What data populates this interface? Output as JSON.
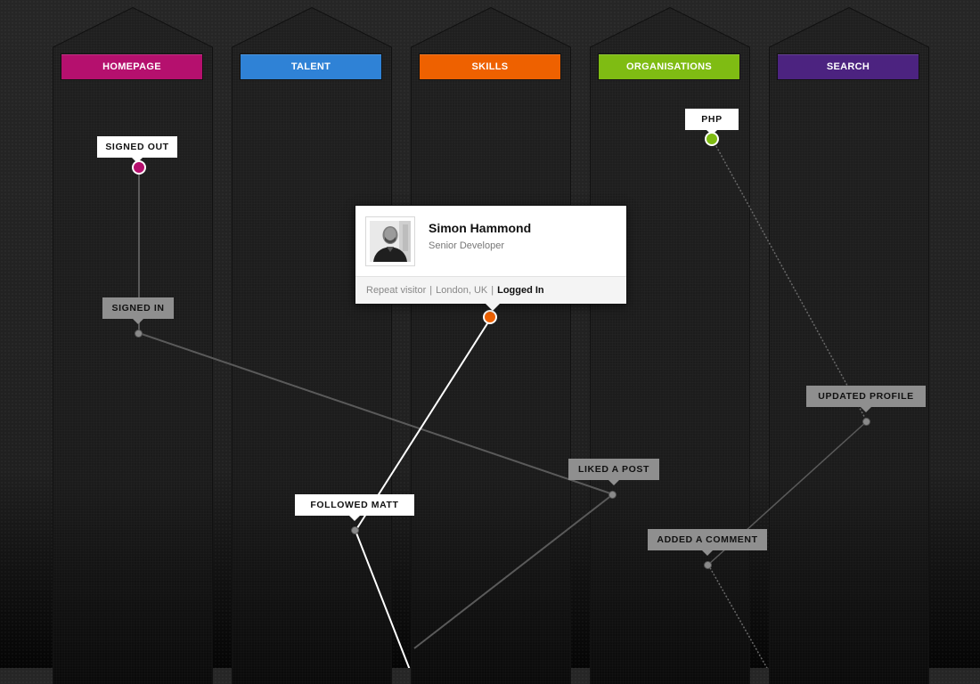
{
  "columns": [
    {
      "id": "homepage",
      "label": "HOMEPAGE",
      "color": "#b5106e"
    },
    {
      "id": "talent",
      "label": "TALENT",
      "color": "#2f82d6"
    },
    {
      "id": "skills",
      "label": "SKILLS",
      "color": "#ee6100"
    },
    {
      "id": "organisations",
      "label": "ORGANISATIONS",
      "color": "#7fbc13"
    },
    {
      "id": "search",
      "label": "SEARCH",
      "color": "#4c2380"
    }
  ],
  "nodes": {
    "signed_out": {
      "label": "SIGNED OUT",
      "dot_color": "#b5106e"
    },
    "signed_in": {
      "label": "SIGNED IN"
    },
    "php": {
      "label": "PHP",
      "dot_color": "#7fbc13"
    },
    "updated_profile": {
      "label": "UPDATED PROFILE"
    },
    "liked_a_post": {
      "label": "LIKED A POST"
    },
    "followed_matt": {
      "label": "FOLLOWED MATT"
    },
    "added_a_comment": {
      "label": "ADDED A COMMENT"
    },
    "skills_active": {
      "dot_color": "#ee6100"
    }
  },
  "profile": {
    "name": "Simon Hammond",
    "role": "Senior Developer",
    "visitor": "Repeat visitor",
    "separator": "|",
    "location": "London, UK",
    "status": "Logged In"
  },
  "icons": {
    "avatar": "person-photo-icon"
  }
}
